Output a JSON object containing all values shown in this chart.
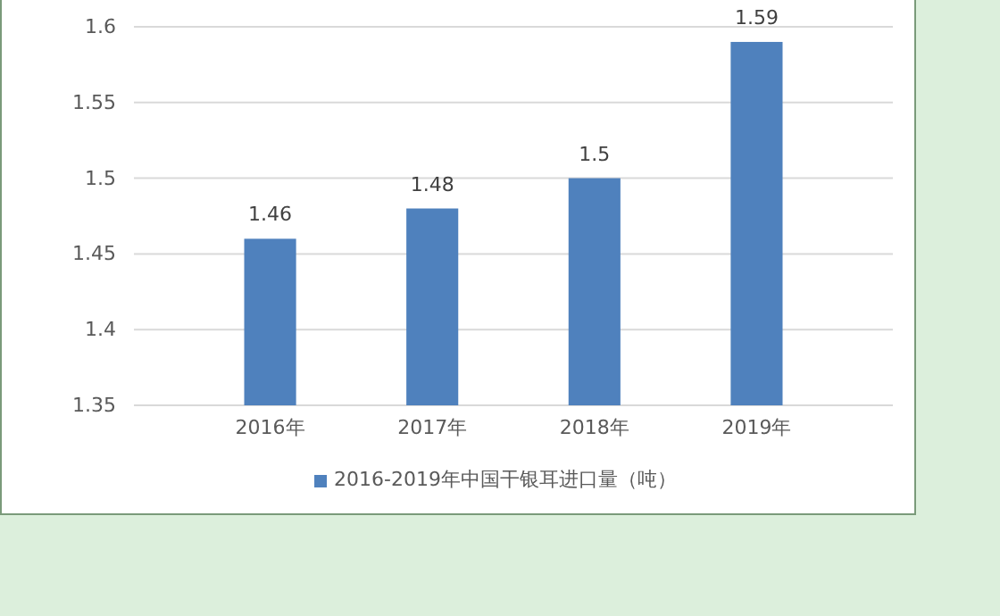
{
  "chart_data": {
    "type": "bar",
    "categories": [
      "2016年",
      "2017年",
      "2018年",
      "2019年"
    ],
    "series": [
      {
        "name": "2016-2019年中国干银耳进口量（吨）",
        "color": "#4f81bd",
        "values": [
          1.46,
          1.48,
          1.5,
          1.59
        ]
      }
    ],
    "ylim": [
      1.35,
      1.6
    ],
    "yticks": [
      1.35,
      1.4,
      1.45,
      1.5,
      1.55,
      1.6
    ],
    "grid": "y",
    "legend": "bottom",
    "data_labels": true
  }
}
